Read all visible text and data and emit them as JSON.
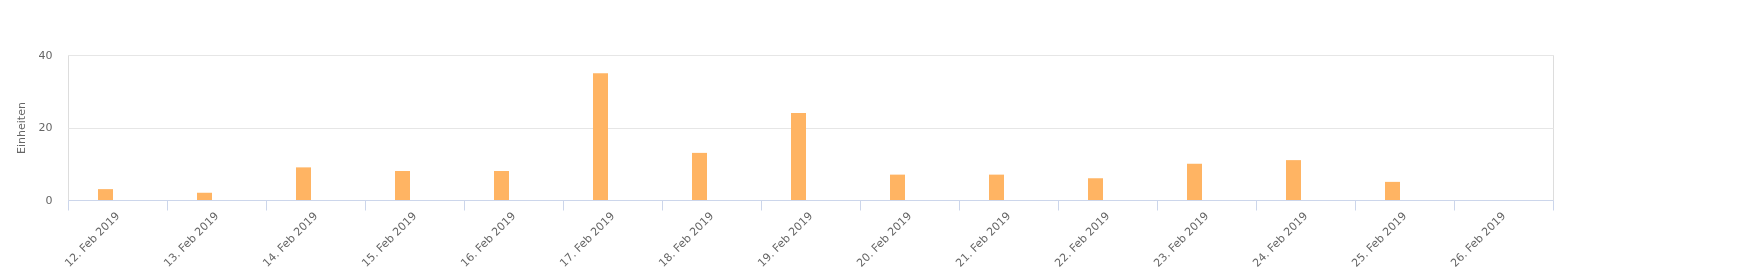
{
  "chart_data": {
    "type": "bar",
    "ylabel": "Einheiten",
    "categories": [
      "12. Feb 2019",
      "13. Feb 2019",
      "14. Feb 2019",
      "15. Feb 2019",
      "16. Feb 2019",
      "17. Feb 2019",
      "18. Feb 2019",
      "19. Feb 2019",
      "20. Feb 2019",
      "21. Feb 2019",
      "22. Feb 2019",
      "23. Feb 2019",
      "24. Feb 2019",
      "25. Feb 2019",
      "26. Feb 2019"
    ],
    "values": [
      3,
      2,
      9,
      8,
      8,
      35,
      13,
      24,
      7,
      7,
      6,
      10,
      11,
      5,
      0
    ],
    "color": "#ffb463",
    "ylim": [
      0,
      40
    ],
    "yticks": [
      0,
      20,
      40
    ],
    "grid": "y"
  }
}
